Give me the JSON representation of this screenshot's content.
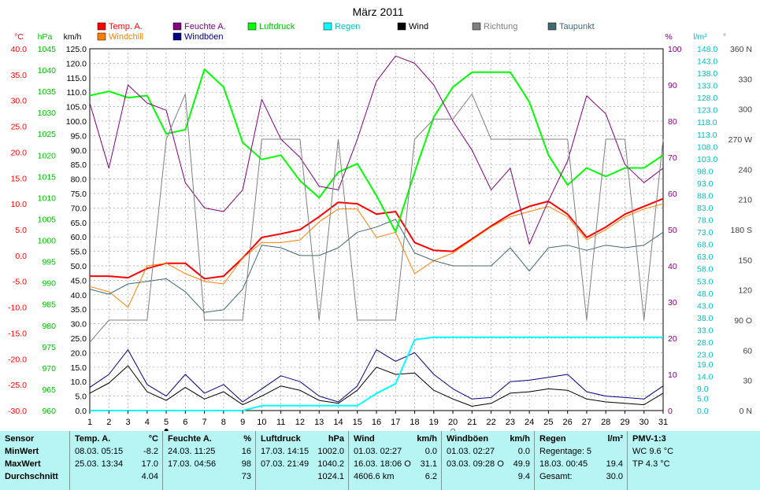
{
  "chart_data": {
    "type": "line",
    "title": "März 2011",
    "x": [
      1,
      2,
      3,
      4,
      5,
      6,
      7,
      8,
      9,
      10,
      11,
      12,
      13,
      14,
      15,
      16,
      17,
      18,
      19,
      20,
      21,
      22,
      23,
      24,
      25,
      26,
      27,
      28,
      29,
      30,
      31
    ],
    "axes": {
      "temp": {
        "unit": "°C",
        "color": "#ff0000",
        "ylim": [
          -30,
          40
        ],
        "ticks": [
          "40.0",
          "35.0",
          "30.0",
          "25.0",
          "20.0",
          "15.0",
          "10.0",
          "5.0",
          "0.0",
          "-5.0",
          "-10.0",
          "-15.0",
          "-20.0",
          "-25.0",
          "-30.0"
        ]
      },
      "pressure": {
        "unit": "hPa",
        "color": "#00c000",
        "ylim": [
          960,
          1045
        ],
        "ticks": [
          "1045",
          "1040",
          "1035",
          "1030",
          "1025",
          "1020",
          "1015",
          "1010",
          "1005",
          "1000",
          "995",
          "990",
          "985",
          "980",
          "975",
          "970",
          "965",
          "960"
        ]
      },
      "wind": {
        "unit": "km/h",
        "color": "#000000",
        "ylim": [
          0,
          125
        ],
        "ticks": [
          "125.0",
          "120.0",
          "115.0",
          "110.0",
          "105.0",
          "100.0",
          "95.0",
          "90.0",
          "85.0",
          "80.0",
          "75.0",
          "70.0",
          "65.0",
          "60.0",
          "55.0",
          "50.0",
          "45.0",
          "40.0",
          "35.0",
          "30.0",
          "25.0",
          "20.0",
          "15.0",
          "10.0",
          "5.0",
          "0.0"
        ]
      },
      "humidity": {
        "unit": "%",
        "color": "#800080",
        "ylim": [
          0,
          100
        ],
        "ticks": [
          "100",
          "90",
          "80",
          "70",
          "60",
          "50",
          "40",
          "30",
          "20",
          "10",
          "0"
        ]
      },
      "rain": {
        "unit": "l/m²",
        "color": "#00c0c0",
        "ylim": [
          0,
          148
        ],
        "ticks": [
          "148.0",
          "143.0",
          "138.0",
          "133.0",
          "128.0",
          "123.0",
          "118.0",
          "113.0",
          "108.0",
          "103.0",
          "98.0",
          "93.0",
          "88.0",
          "83.0",
          "78.0",
          "73.0",
          "68.0",
          "63.0",
          "58.0",
          "53.0",
          "48.0",
          "43.0",
          "38.0",
          "33.0",
          "28.0",
          "23.0",
          "19.0",
          "14.0",
          "9.0",
          "5.0",
          "0.0"
        ]
      },
      "direction": {
        "unit": "°",
        "color": "#404040",
        "ylim": [
          0,
          360
        ],
        "ticks": [
          {
            "v": 360,
            "t": "360 N"
          },
          {
            "v": 330,
            "t": "330"
          },
          {
            "v": 300,
            "t": "300"
          },
          {
            "v": 270,
            "t": "270 W"
          },
          {
            "v": 240,
            "t": "240"
          },
          {
            "v": 210,
            "t": "210"
          },
          {
            "v": 180,
            "t": "180 S"
          },
          {
            "v": 150,
            "t": "150"
          },
          {
            "v": 120,
            "t": "120"
          },
          {
            "v": 90,
            "t": "90 O"
          },
          {
            "v": 60,
            "t": "60"
          },
          {
            "v": 30,
            "t": "30"
          },
          {
            "v": 0,
            "t": "0 N"
          }
        ]
      }
    },
    "legend": [
      {
        "name": "Temp. A.",
        "color": "#ff0000"
      },
      {
        "name": "Feuchte A.",
        "color": "#800080"
      },
      {
        "name": "Luftdruck",
        "color": "#00ff00"
      },
      {
        "name": "Regen",
        "color": "#00ffff"
      },
      {
        "name": "Wind",
        "color": "#000000"
      },
      {
        "name": "Richtung",
        "color": "#808080"
      },
      {
        "name": "Taupunkt",
        "color": "#406a72"
      },
      {
        "name": "Windchill",
        "color": "#ff8000"
      },
      {
        "name": "Windböen",
        "color": "#000080"
      }
    ],
    "series": [
      {
        "name": "Temp. A.",
        "axis": "temp",
        "color": "#ff0000",
        "width": 2,
        "values": [
          -4.0,
          -4.0,
          -4.3,
          -2.5,
          -1.5,
          -1.5,
          -4.5,
          -4.0,
          -0.5,
          3.5,
          4.2,
          5.0,
          7.5,
          10.3,
          10.0,
          8.0,
          8.5,
          2.5,
          1.0,
          0.8,
          3.2,
          5.7,
          8.0,
          9.5,
          10.5,
          8.0,
          3.5,
          5.5,
          8.0,
          9.5,
          11.0
        ]
      },
      {
        "name": "Windchill",
        "axis": "temp",
        "color": "#ff8000",
        "width": 1,
        "values": [
          -6.0,
          -7.0,
          -10.0,
          -2.0,
          -1.5,
          -3.5,
          -5.0,
          -5.5,
          -0.5,
          2.5,
          2.5,
          3.0,
          6.5,
          9.0,
          9.0,
          3.5,
          4.5,
          -3.5,
          -1.0,
          0.5,
          3.0,
          5.5,
          7.5,
          8.5,
          9.5,
          7.5,
          3.0,
          5.0,
          7.5,
          9.0,
          10.0
        ]
      },
      {
        "name": "Taupunkt",
        "axis": "temp",
        "color": "#406a72",
        "width": 1,
        "values": [
          -6.5,
          -7.5,
          -5.5,
          -5.0,
          -4.5,
          -7.0,
          -11.0,
          -10.5,
          -6.5,
          2.0,
          1.5,
          0.0,
          0.0,
          1.5,
          4.5,
          5.5,
          7.0,
          0.5,
          -1.0,
          -2.0,
          -2.0,
          -2.0,
          1.5,
          -3.0,
          1.5,
          2.0,
          1.0,
          2.0,
          1.5,
          2.0,
          4.5
        ]
      },
      {
        "name": "Luftdruck",
        "axis": "pressure",
        "color": "#00ff00",
        "width": 2,
        "values": [
          1034.0,
          1035.0,
          1033.5,
          1034.0,
          1025.0,
          1026.0,
          1040.2,
          1036.0,
          1023.0,
          1019.0,
          1020.0,
          1014.0,
          1010.0,
          1016.0,
          1018.0,
          1010.5,
          1002.0,
          1016.0,
          1029.0,
          1036.0,
          1039.5,
          1039.5,
          1039.5,
          1032.5,
          1020.0,
          1013.0,
          1017.0,
          1015.0,
          1017.0,
          1017.0,
          1020.0
        ]
      },
      {
        "name": "Feuchte A.",
        "axis": "humidity",
        "color": "#800080",
        "width": 1,
        "values": [
          85,
          67,
          90,
          85,
          83,
          63,
          56,
          55,
          61,
          86,
          75,
          70,
          62,
          61,
          75,
          91,
          98,
          96,
          90,
          80,
          72,
          61,
          67,
          46,
          58,
          69,
          87,
          82,
          68,
          63,
          67
        ]
      },
      {
        "name": "Wind",
        "axis": "wind",
        "color": "#000000",
        "width": 1,
        "values": [
          6.0,
          9.5,
          15.5,
          6.5,
          3.5,
          8.0,
          4.0,
          6.5,
          2.0,
          5.0,
          8.5,
          7.0,
          3.5,
          2.5,
          7.0,
          15.0,
          12.5,
          13.0,
          7.0,
          4.0,
          1.5,
          2.5,
          6.0,
          6.5,
          7.5,
          7.0,
          4.0,
          3.0,
          2.5,
          2.0,
          6.0
        ]
      },
      {
        "name": "Windböen",
        "axis": "wind",
        "color": "#000080",
        "width": 1,
        "values": [
          8.0,
          12.5,
          21.0,
          9.0,
          5.0,
          12.5,
          6.0,
          9.0,
          3.0,
          7.5,
          12.0,
          10.0,
          5.0,
          3.0,
          8.5,
          21.0,
          17.0,
          20.0,
          12.5,
          7.5,
          4.0,
          4.5,
          10.0,
          10.5,
          11.5,
          12.5,
          6.5,
          5.0,
          4.5,
          4.0,
          8.5
        ]
      },
      {
        "name": "Richtung",
        "axis": "direction",
        "color": "#808080",
        "width": 1,
        "values": [
          68,
          90,
          90,
          90,
          270,
          315,
          90,
          90,
          90,
          270,
          270,
          270,
          90,
          270,
          90,
          90,
          90,
          270,
          290,
          290,
          315,
          270,
          270,
          270,
          270,
          270,
          90,
          270,
          270,
          90,
          270
        ]
      },
      {
        "name": "Regen",
        "axis": "rain",
        "color": "#00ffff",
        "width": 2,
        "values": [
          0,
          0,
          0,
          0,
          0,
          0,
          0,
          0,
          0,
          2,
          2,
          2,
          2,
          2,
          2,
          7,
          11,
          29,
          30,
          30,
          30,
          30,
          30,
          30,
          30,
          30,
          30,
          30,
          30,
          30,
          30
        ]
      }
    ],
    "grid": true,
    "weekday_markers": [
      {
        "day": 5,
        "symbol": "●"
      },
      {
        "day": 20,
        "symbol": "○"
      }
    ]
  },
  "stats": {
    "columns": [
      {
        "rows": [
          "Sensor",
          "MinWert",
          "MaxWert",
          "Durchschnitt"
        ]
      },
      {
        "title": "Temp. A.",
        "unit": "°C",
        "rows": [
          [
            "08.03.  05:15",
            "-8.2"
          ],
          [
            "25.03.  13:34",
            "17.0"
          ],
          [
            "",
            "4.04"
          ]
        ]
      },
      {
        "title": "Feuchte A.",
        "unit": "%",
        "rows": [
          [
            "24.03.  11:25",
            "16"
          ],
          [
            "17.03.  04:56",
            "98"
          ],
          [
            "",
            "73"
          ]
        ]
      },
      {
        "title": "Luftdruck",
        "unit": "hPa",
        "rows": [
          [
            "17.03.  14:15",
            "1002.0"
          ],
          [
            "07.03.  21:49",
            "1040.2"
          ],
          [
            "",
            "1024.1"
          ]
        ]
      },
      {
        "title": "Wind",
        "unit": "km/h",
        "rows": [
          [
            "01.03.  02:27",
            "0.0"
          ],
          [
            "16.03.  18:06  O",
            "31.1"
          ],
          [
            "4606.6 km",
            "6.2"
          ]
        ]
      },
      {
        "title": "Windböen",
        "unit": "km/h",
        "rows": [
          [
            "01.03.  02:27",
            "0.0"
          ],
          [
            "03.03.  09:28  O",
            "49.9"
          ],
          [
            "",
            "9.4"
          ]
        ]
      },
      {
        "title": "Regen",
        "unit": "l/m²",
        "rows": [
          [
            "Regentage: 5",
            ""
          ],
          [
            "18.03.  00:45",
            "19.4"
          ],
          [
            "Gesamt:",
            "30.0"
          ]
        ]
      },
      {
        "title": "PMV-1:3",
        "unit": "",
        "rows": [
          [
            "WC 9.6 °C",
            ""
          ],
          [
            "TP 4.3 °C",
            ""
          ],
          [
            "",
            ""
          ]
        ]
      }
    ]
  }
}
